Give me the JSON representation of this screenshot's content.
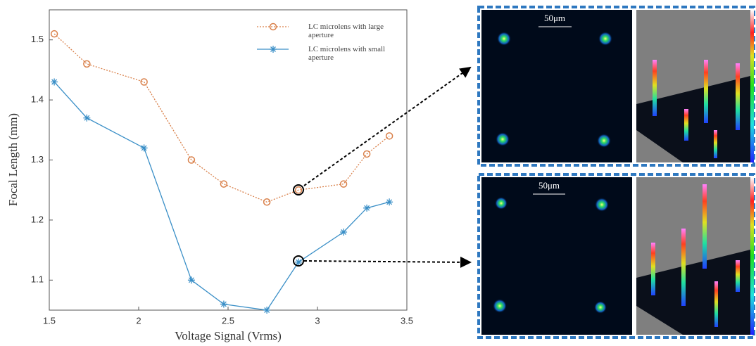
{
  "chart_data": {
    "type": "line",
    "xlabel": "Voltage Signal (Vrms)",
    "ylabel": "Focal Length (mm)",
    "x": [
      1.528,
      1.71,
      2.03,
      2.295,
      2.476,
      2.717,
      2.894,
      3.146,
      3.276,
      3.402
    ],
    "series": [
      {
        "name": "LC microlens with large aperture",
        "color": "#d9804a",
        "marker": "circle",
        "linestyle": "dotted",
        "values": [
          1.51,
          1.46,
          1.43,
          1.3,
          1.26,
          1.23,
          1.25,
          1.26,
          1.31,
          1.34
        ]
      },
      {
        "name": "LC microlens with small aperture",
        "color": "#3a8fc7",
        "marker": "asterisk",
        "linestyle": "solid",
        "values": [
          1.43,
          1.37,
          1.32,
          1.1,
          1.06,
          1.05,
          1.13,
          1.18,
          1.22,
          1.23
        ]
      }
    ],
    "xlim": [
      1.5,
      3.5
    ],
    "xticks": [
      1.5,
      2,
      2.5,
      3,
      3.5
    ],
    "ylim": [
      1.05,
      1.55
    ],
    "yticks": [
      1.1,
      1.2,
      1.3,
      1.4,
      1.5
    ],
    "grid": false,
    "legend": "upper right"
  },
  "panels": [
    {
      "scale_label": "50μm"
    },
    {
      "scale_label": "50μm"
    }
  ]
}
